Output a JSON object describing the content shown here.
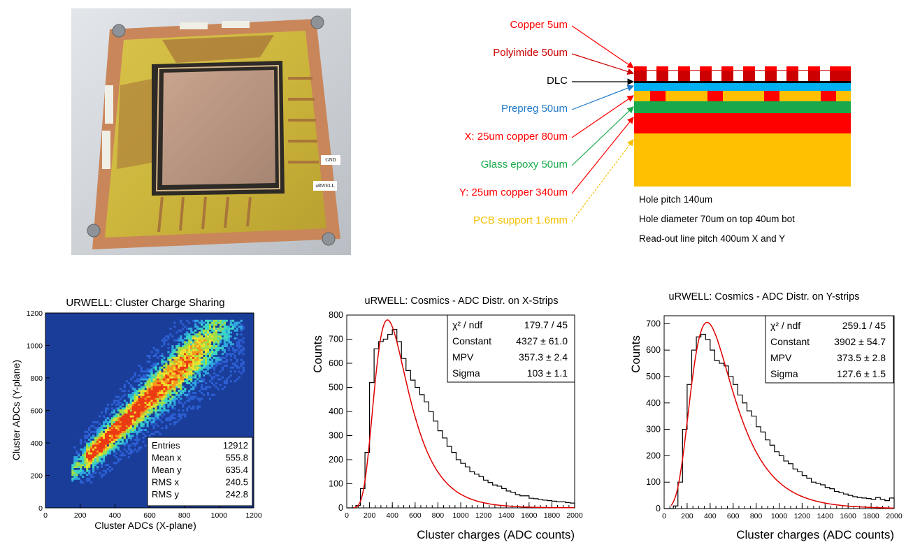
{
  "photo": {
    "gnd_label": "GND",
    "urwell_label": "uRWELL"
  },
  "stack": {
    "layers": [
      {
        "label": "Copper 5um",
        "color": "#ff0000"
      },
      {
        "label": "Polyimide 50um",
        "color": "#cc0000"
      },
      {
        "label": "DLC",
        "color": "#000000"
      },
      {
        "label": "Prepreg 50um",
        "color": "#1e78c8"
      },
      {
        "label": "X: 25um copper 80um",
        "color": "#ff0000"
      },
      {
        "label": "Glass epoxy 50um",
        "color": "#19a84a"
      },
      {
        "label": "Y: 25um copper 340um",
        "color": "#ff0000"
      },
      {
        "label": "PCB support 1.6mm",
        "color": "#f5c000"
      }
    ],
    "notes": [
      "Hole pitch 140um",
      "Hole diameter 70um on top 40um bot",
      "Read-out line pitch 400um X and Y"
    ]
  },
  "chart_data": [
    {
      "type": "heatmap",
      "title": "URWELL: Cluster Charge Sharing",
      "xlabel": "Cluster ADCs (X-plane)",
      "ylabel": "Cluster ADCs (Y-plane)",
      "xlim": [
        0,
        1200
      ],
      "ylim": [
        0,
        1200
      ],
      "xticks": [
        "0",
        "200",
        "400",
        "600",
        "800",
        "1000",
        "1200"
      ],
      "yticks": [
        "0",
        "200",
        "400",
        "600",
        "800",
        "1000",
        "1200"
      ],
      "stats": [
        {
          "name": "Entries",
          "value": "12912"
        },
        {
          "name": "Mean x",
          "value": "555.8"
        },
        {
          "name": "Mean y",
          "value": "635.4"
        },
        {
          "name": "RMS x",
          "value": "240.5"
        },
        {
          "name": "RMS y",
          "value": "242.8"
        }
      ],
      "colors": {
        "background": "#1a3d9a",
        "high": "#ff2200"
      }
    },
    {
      "type": "bar",
      "title": "uRWELL: Cosmics - ADC Distr. on X-Strips",
      "xlabel": "Cluster charges (ADC counts)",
      "ylabel": "Counts",
      "xlim": [
        0,
        2000
      ],
      "ylim": [
        0,
        800
      ],
      "xticks": [
        "0",
        "200",
        "400",
        "600",
        "800",
        "1000",
        "1200",
        "1400",
        "1600",
        "1800",
        "2000"
      ],
      "yticks": [
        "0",
        "100",
        "200",
        "300",
        "400",
        "500",
        "600",
        "700",
        "800"
      ],
      "fit": {
        "type": "landau",
        "constant": 4327,
        "mpv": 357.3,
        "sigma": 103,
        "peak": 780
      },
      "stats": [
        {
          "name": "χ² / ndf",
          "value": "179.7 / 45"
        },
        {
          "name": "Constant",
          "value": "4327 ± 61.0"
        },
        {
          "name": "MPV",
          "value": "357.3 ± 2.4"
        },
        {
          "name": "Sigma",
          "value": "103 ± 1.1"
        }
      ],
      "bin_width": 40,
      "values": [
        0,
        0,
        10,
        80,
        230,
        520,
        660,
        690,
        700,
        720,
        740,
        690,
        620,
        570,
        530,
        500,
        470,
        440,
        400,
        360,
        320,
        290,
        255,
        230,
        200,
        185,
        170,
        150,
        140,
        130,
        115,
        105,
        95,
        90,
        80,
        70,
        65,
        55,
        50,
        50,
        40,
        38,
        35,
        32,
        30,
        28,
        25,
        25,
        22,
        20
      ]
    },
    {
      "type": "bar",
      "title": "uRWELL: Cosmics - ADC Distr. on Y-strips",
      "xlabel": "Cluster charges (ADC counts)",
      "ylabel": "Counts",
      "xlim": [
        0,
        2000
      ],
      "ylim": [
        0,
        730
      ],
      "xticks": [
        "0",
        "200",
        "400",
        "600",
        "800",
        "1000",
        "1200",
        "1400",
        "1600",
        "1800",
        "2000"
      ],
      "yticks": [
        "0",
        "100",
        "200",
        "300",
        "400",
        "500",
        "600",
        "700"
      ],
      "fit": {
        "type": "landau",
        "constant": 3902,
        "mpv": 373.5,
        "sigma": 127.6,
        "peak": 705
      },
      "stats": [
        {
          "name": "χ² / ndf",
          "value": "259.1 / 45"
        },
        {
          "name": "Constant",
          "value": "3902 ± 54.7"
        },
        {
          "name": "MPV",
          "value": "373.5 ± 2.8"
        },
        {
          "name": "Sigma",
          "value": "127.6 ± 1.5"
        }
      ],
      "bin_width": 40,
      "values": [
        0,
        0,
        10,
        100,
        300,
        470,
        600,
        650,
        660,
        640,
        600,
        560,
        550,
        540,
        500,
        470,
        430,
        400,
        370,
        350,
        310,
        290,
        260,
        240,
        215,
        200,
        180,
        170,
        150,
        140,
        125,
        115,
        100,
        95,
        90,
        80,
        75,
        65,
        60,
        55,
        50,
        45,
        42,
        40,
        38,
        35,
        42,
        35,
        30,
        40
      ]
    }
  ]
}
